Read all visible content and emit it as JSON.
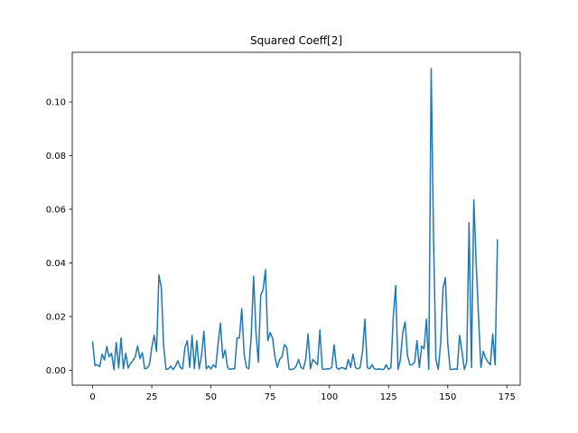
{
  "chart_data": {
    "type": "line",
    "title": "Squared Coeff[2]",
    "xlabel": "",
    "ylabel": "",
    "xlim": [
      -8.6,
      180.6
    ],
    "ylim": [
      -0.0056,
      0.1185
    ],
    "xticks": [
      0,
      25,
      50,
      75,
      100,
      125,
      150,
      175
    ],
    "yticks": [
      0.0,
      0.02,
      0.04,
      0.06,
      0.08,
      0.1
    ],
    "ytick_labels": [
      "0.00",
      "0.02",
      "0.04",
      "0.06",
      "0.08",
      "0.10"
    ],
    "grid": false,
    "line_color": "#1f77b4",
    "x_start": 0,
    "values": [
      0.0105,
      0.0017,
      0.002,
      0.0013,
      0.006,
      0.0038,
      0.0088,
      0.005,
      0.0063,
      0.0002,
      0.0103,
      0.0008,
      0.012,
      0.0005,
      0.0063,
      0.0008,
      0.0025,
      0.0035,
      0.005,
      0.009,
      0.0043,
      0.0065,
      0.0005,
      0.0008,
      0.002,
      0.0085,
      0.013,
      0.007,
      0.0355,
      0.031,
      0.009,
      0.0003,
      0.0005,
      0.0015,
      0.0002,
      0.0015,
      0.0035,
      0.001,
      0.0005,
      0.0085,
      0.011,
      0.001,
      0.013,
      0.0005,
      0.011,
      0.0005,
      0.0055,
      0.0145,
      0.0005,
      0.0015,
      0.0005,
      0.002,
      0.001,
      0.01,
      0.0175,
      0.0045,
      0.0075,
      0.001,
      0.0003,
      0.0005,
      0.0005,
      0.012,
      0.012,
      0.023,
      0.006,
      0.001,
      0.0005,
      0.013,
      0.035,
      0.014,
      0.003,
      0.028,
      0.03,
      0.0375,
      0.011,
      0.014,
      0.012,
      0.005,
      0.001,
      0.004,
      0.005,
      0.0095,
      0.0085,
      0.0003,
      0.0003,
      0.0005,
      0.0015,
      0.004,
      0.001,
      0.0005,
      0.004,
      0.0135,
      0.0005,
      0.004,
      0.003,
      0.002,
      0.015,
      0.0005,
      0.0003,
      0.0005,
      0.0005,
      0.001,
      0.0095,
      0.001,
      0.0003,
      0.001,
      0.0008,
      0.0003,
      0.004,
      0.001,
      0.006,
      0.001,
      0.0005,
      0.001,
      0.007,
      0.019,
      0.001,
      0.0005,
      0.002,
      0.0005,
      0.0003,
      0.0005,
      0.0003,
      0.0003,
      0.002,
      0.0003,
      0.001,
      0.02,
      0.0315,
      0.0003,
      0.004,
      0.014,
      0.018,
      0.0055,
      0.002,
      0.002,
      0.003,
      0.011,
      0.001,
      0.009,
      0.008,
      0.019,
      0.0003,
      0.1125,
      0.049,
      0.004,
      0.0003,
      0.01,
      0.0305,
      0.0345,
      0.01,
      0.0003,
      0.0003,
      0.0005,
      0.0003,
      0.013,
      0.007,
      0.0003,
      0.003,
      0.055,
      0.001,
      0.0635,
      0.04,
      0.02,
      0.001,
      0.007,
      0.0045,
      0.003,
      0.002,
      0.0135,
      0.002,
      0.0485
    ]
  }
}
